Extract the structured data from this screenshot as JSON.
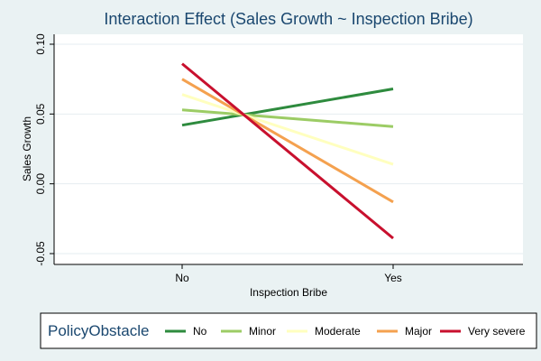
{
  "chart_data": {
    "type": "line",
    "title": "Interaction Effect (Sales Growth ~ Inspection Bribe)",
    "xlabel": "Inspection Bribe",
    "ylabel": "Sales Growth",
    "categories": [
      "No",
      "Yes"
    ],
    "ylim": [
      -0.05,
      0.1
    ],
    "yticks": [
      "-0.05",
      "0.00",
      "0.05",
      "0.10"
    ],
    "grid": true,
    "legend": {
      "title": "PolicyObstacle",
      "position": "bottom"
    },
    "series": [
      {
        "name": "No",
        "color": "#2e8b3e",
        "values": [
          0.042,
          0.068
        ]
      },
      {
        "name": "Minor",
        "color": "#9ccc65",
        "values": [
          0.053,
          0.041
        ]
      },
      {
        "name": "Moderate",
        "color": "#ffffbf",
        "values": [
          0.064,
          0.014
        ]
      },
      {
        "name": "Major",
        "color": "#f4a14f",
        "values": [
          0.075,
          -0.013
        ]
      },
      {
        "name": "Very severe",
        "color": "#c8102e",
        "values": [
          0.086,
          -0.039
        ]
      }
    ]
  }
}
